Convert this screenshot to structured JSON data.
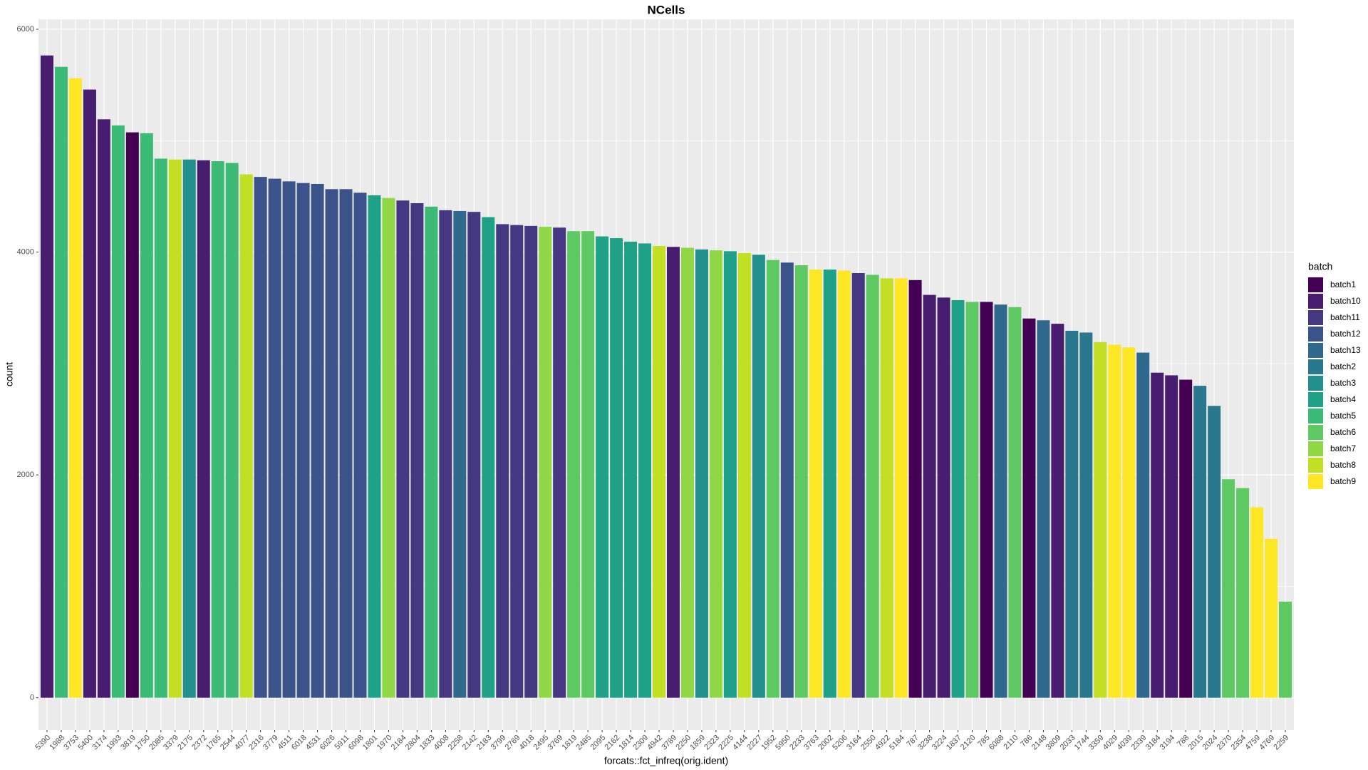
{
  "chart_data": {
    "type": "bar",
    "title": "NCells",
    "x_label": "forcats::fct_infreq(orig.ident)",
    "y_label": "count",
    "categories": [
      "5390",
      "1988",
      "3753",
      "5400",
      "3174",
      "1993",
      "3819",
      "1750",
      "2085",
      "3379",
      "2175",
      "2372",
      "1765",
      "2544",
      "4077",
      "2316",
      "3779",
      "4511",
      "6018",
      "4531",
      "6026",
      "5911",
      "6098",
      "1801",
      "1970",
      "2184",
      "2804",
      "1833",
      "4008",
      "2258",
      "2142",
      "2183",
      "3799",
      "2769",
      "4018",
      "2495",
      "3769",
      "1819",
      "2485",
      "2095",
      "2162",
      "1814",
      "2309",
      "4942",
      "3789",
      "2250",
      "1859",
      "2323",
      "2225",
      "4144",
      "2227",
      "1952",
      "5950",
      "2233",
      "3763",
      "2002",
      "5206",
      "3164",
      "2550",
      "4922",
      "5184",
      "787",
      "3238",
      "3224",
      "1837",
      "2120",
      "785",
      "6088",
      "2110",
      "786",
      "2148",
      "3809",
      "2033",
      "1744",
      "3359",
      "4029",
      "4039",
      "2339",
      "3184",
      "3194",
      "788",
      "2015",
      "2024",
      "2370",
      "2354",
      "4759",
      "4769",
      "2259"
    ],
    "values": [
      5765,
      5663,
      5561,
      5459,
      5192,
      5137,
      5075,
      5067,
      4839,
      4831,
      4831,
      4824,
      4816,
      4800,
      4698,
      4675,
      4659,
      4635,
      4620,
      4612,
      4565,
      4565,
      4533,
      4510,
      4486,
      4463,
      4439,
      4408,
      4376,
      4369,
      4361,
      4314,
      4251,
      4243,
      4235,
      4227,
      4220,
      4188,
      4188,
      4141,
      4125,
      4094,
      4078,
      4055,
      4047,
      4039,
      4024,
      4016,
      4008,
      3992,
      3976,
      3929,
      3906,
      3882,
      3843,
      3843,
      3835,
      3812,
      3796,
      3765,
      3765,
      3749,
      3616,
      3592,
      3569,
      3553,
      3553,
      3529,
      3506,
      3404,
      3388,
      3357,
      3294,
      3278,
      3192,
      3169,
      3145,
      3098,
      2918,
      2894,
      2855,
      2800,
      2620,
      1961,
      1882,
      1710,
      1427,
      863
    ],
    "colors": [
      "#481C6E",
      "#3BBB75",
      "#FDE725",
      "#481C6E",
      "#481C6E",
      "#3BBB75",
      "#440154",
      "#3BBB75",
      "#3BBB75",
      "#C2DF23",
      "#21908C",
      "#481C6E",
      "#3BBB75",
      "#3BBB75",
      "#C2DF23",
      "#3B528B",
      "#3B528B",
      "#3B528B",
      "#3B528B",
      "#3B528B",
      "#3B528B",
      "#3B528B",
      "#3B528B",
      "#1FA187",
      "#8FD744",
      "#453781",
      "#453781",
      "#3BBB75",
      "#453781",
      "#31688E",
      "#453781",
      "#1FA187",
      "#453781",
      "#453781",
      "#453781",
      "#8FD744",
      "#453781",
      "#5EC962",
      "#5EC962",
      "#1FA187",
      "#1FA187",
      "#1FA187",
      "#1FA187",
      "#C2DF23",
      "#481C6E",
      "#8FD744",
      "#21908C",
      "#8FD744",
      "#1FA187",
      "#C2DF23",
      "#21908C",
      "#5EC962",
      "#3B528B",
      "#5EC962",
      "#FDE725",
      "#1FA187",
      "#FDE725",
      "#453781",
      "#5EC962",
      "#C2DF23",
      "#FDE725",
      "#440154",
      "#481C6E",
      "#481C6E",
      "#1FA187",
      "#5EC962",
      "#440154",
      "#31688E",
      "#5EC962",
      "#440154",
      "#31688E",
      "#481C6E",
      "#2A788E",
      "#2A788E",
      "#C2DF23",
      "#FDE725",
      "#FDE725",
      "#31688E",
      "#481C6E",
      "#481C6E",
      "#440154",
      "#2A788E",
      "#2A788E",
      "#5EC962",
      "#5EC962",
      "#FDE725",
      "#FDE725",
      "#5EC962"
    ],
    "ylim": [
      -290,
      6090
    ],
    "yticks": [
      0,
      2000,
      4000,
      6000
    ],
    "grid": true,
    "legend": {
      "title": "batch",
      "position": "right",
      "names": [
        "batch1",
        "batch10",
        "batch11",
        "batch12",
        "batch13",
        "batch2",
        "batch3",
        "batch4",
        "batch5",
        "batch6",
        "batch7",
        "batch8",
        "batch9"
      ],
      "colors": [
        "#440154",
        "#481C6E",
        "#453781",
        "#3B528B",
        "#31688E",
        "#2A788E",
        "#21908C",
        "#1FA187",
        "#3BBB75",
        "#5EC962",
        "#8FD744",
        "#C2DF23",
        "#FDE725"
      ]
    }
  }
}
